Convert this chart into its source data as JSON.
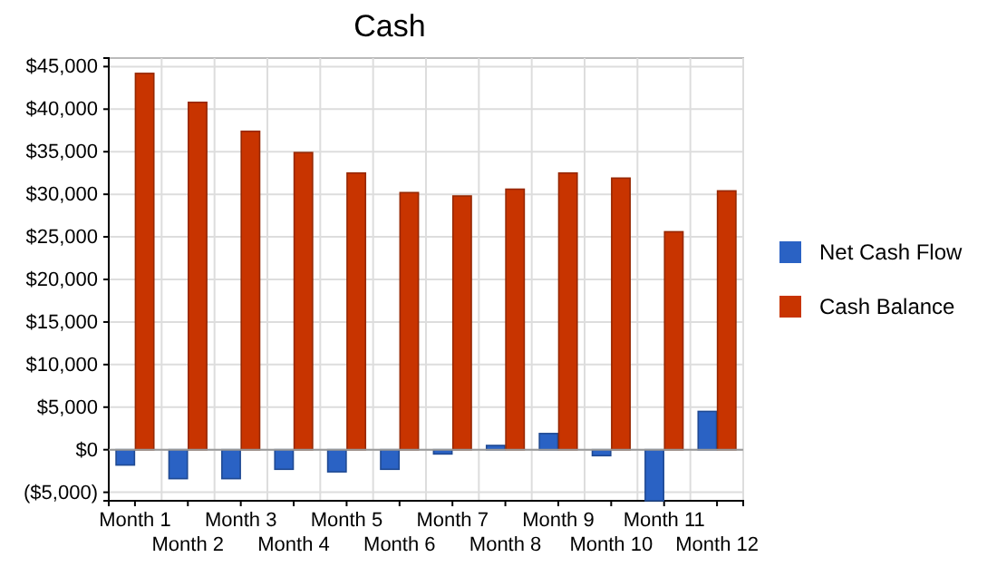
{
  "chart_data": {
    "type": "bar",
    "title": "Cash",
    "categories": [
      "Month 1",
      "Month 2",
      "Month 3",
      "Month 4",
      "Month 5",
      "Month 6",
      "Month 7",
      "Month 8",
      "Month 9",
      "Month 10",
      "Month 11",
      "Month 12"
    ],
    "series": [
      {
        "name": "Net Cash Flow",
        "color": "#2a62c4",
        "values": [
          -1800,
          -3400,
          -3400,
          -2300,
          -2600,
          -2300,
          -500,
          500,
          1900,
          -700,
          -6000,
          4500
        ]
      },
      {
        "name": "Cash Balance",
        "color": "#c83400",
        "values": [
          44200,
          40800,
          37400,
          34900,
          32500,
          30200,
          29800,
          30600,
          32500,
          31900,
          25600,
          30400
        ]
      }
    ],
    "ylim": [
      -6000,
      46000
    ],
    "yticks": [
      {
        "value": -5000,
        "label": "($5,000)"
      },
      {
        "value": 0,
        "label": "$0"
      },
      {
        "value": 5000,
        "label": "$5,000"
      },
      {
        "value": 10000,
        "label": "$10,000"
      },
      {
        "value": 15000,
        "label": "$15,000"
      },
      {
        "value": 20000,
        "label": "$20,000"
      },
      {
        "value": 25000,
        "label": "$25,000"
      },
      {
        "value": 30000,
        "label": "$30,000"
      },
      {
        "value": 35000,
        "label": "$35,000"
      },
      {
        "value": 40000,
        "label": "$40,000"
      },
      {
        "value": 45000,
        "label": "$45,000"
      }
    ],
    "grid": true,
    "legend": "right"
  }
}
